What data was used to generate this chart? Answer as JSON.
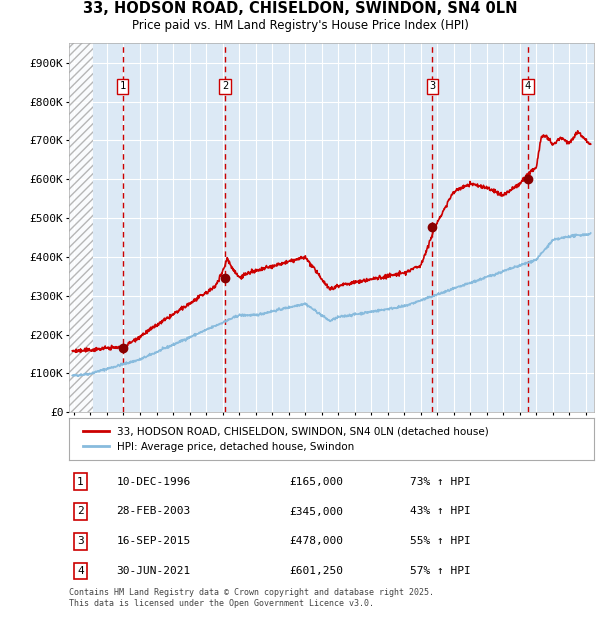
{
  "title1": "33, HODSON ROAD, CHISELDON, SWINDON, SN4 0LN",
  "title2": "Price paid vs. HM Land Registry's House Price Index (HPI)",
  "ylim": [
    0,
    950000
  ],
  "xlim_start": 1993.7,
  "xlim_end": 2025.5,
  "background_color": "#dce9f5",
  "grid_color": "#ffffff",
  "hatch_color": "#b8c8d8",
  "red_line_color": "#cc0000",
  "blue_line_color": "#88bbdd",
  "sale_marker_color": "#880000",
  "vline_color": "#cc0000",
  "sale_points": [
    {
      "year": 1996.95,
      "price": 165000,
      "label": "1"
    },
    {
      "year": 2003.16,
      "price": 345000,
      "label": "2"
    },
    {
      "year": 2015.71,
      "price": 478000,
      "label": "3"
    },
    {
      "year": 2021.49,
      "price": 601250,
      "label": "4"
    }
  ],
  "vline_years": [
    1996.95,
    2003.16,
    2015.71,
    2021.49
  ],
  "legend_entries": [
    "33, HODSON ROAD, CHISELDON, SWINDON, SN4 0LN (detached house)",
    "HPI: Average price, detached house, Swindon"
  ],
  "table_rows": [
    {
      "num": "1",
      "date": "10-DEC-1996",
      "price": "£165,000",
      "hpi": "73% ↑ HPI"
    },
    {
      "num": "2",
      "date": "28-FEB-2003",
      "price": "£345,000",
      "hpi": "43% ↑ HPI"
    },
    {
      "num": "3",
      "date": "16-SEP-2015",
      "price": "£478,000",
      "hpi": "55% ↑ HPI"
    },
    {
      "num": "4",
      "date": "30-JUN-2021",
      "price": "£601,250",
      "hpi": "57% ↑ HPI"
    }
  ],
  "footer": "Contains HM Land Registry data © Crown copyright and database right 2025.\nThis data is licensed under the Open Government Licence v3.0.",
  "yticks": [
    0,
    100000,
    200000,
    300000,
    400000,
    500000,
    600000,
    700000,
    800000,
    900000
  ],
  "ytick_labels": [
    "£0",
    "£100K",
    "£200K",
    "£300K",
    "£400K",
    "£500K",
    "£600K",
    "£700K",
    "£800K",
    "£900K"
  ]
}
